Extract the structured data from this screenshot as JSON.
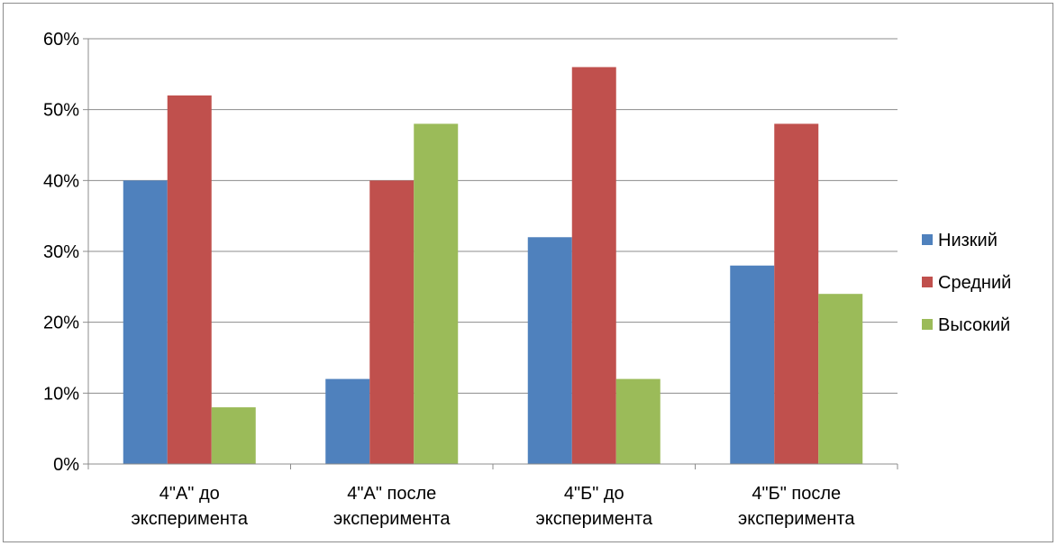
{
  "chart_data": {
    "type": "bar",
    "categories": [
      [
        "4\"А\" до",
        "эксперимента"
      ],
      [
        "4\"А\" после",
        "эксперимента"
      ],
      [
        "4\"Б\" до",
        "эксперимента"
      ],
      [
        "4\"Б\" после",
        "эксперимента"
      ]
    ],
    "series": [
      {
        "name": "Низкий",
        "color": "#4f81bd",
        "values": [
          0.4,
          0.12,
          0.32,
          0.28
        ]
      },
      {
        "name": "Средний",
        "color": "#c0504d",
        "values": [
          0.52,
          0.4,
          0.56,
          0.48
        ]
      },
      {
        "name": "Высокий",
        "color": "#9bbb59",
        "values": [
          0.08,
          0.48,
          0.12,
          0.24
        ]
      }
    ],
    "ylim": [
      0,
      0.6
    ],
    "yticks": [
      "0%",
      "10%",
      "20%",
      "30%",
      "40%",
      "50%",
      "60%"
    ],
    "grid": true,
    "legend": "right"
  }
}
